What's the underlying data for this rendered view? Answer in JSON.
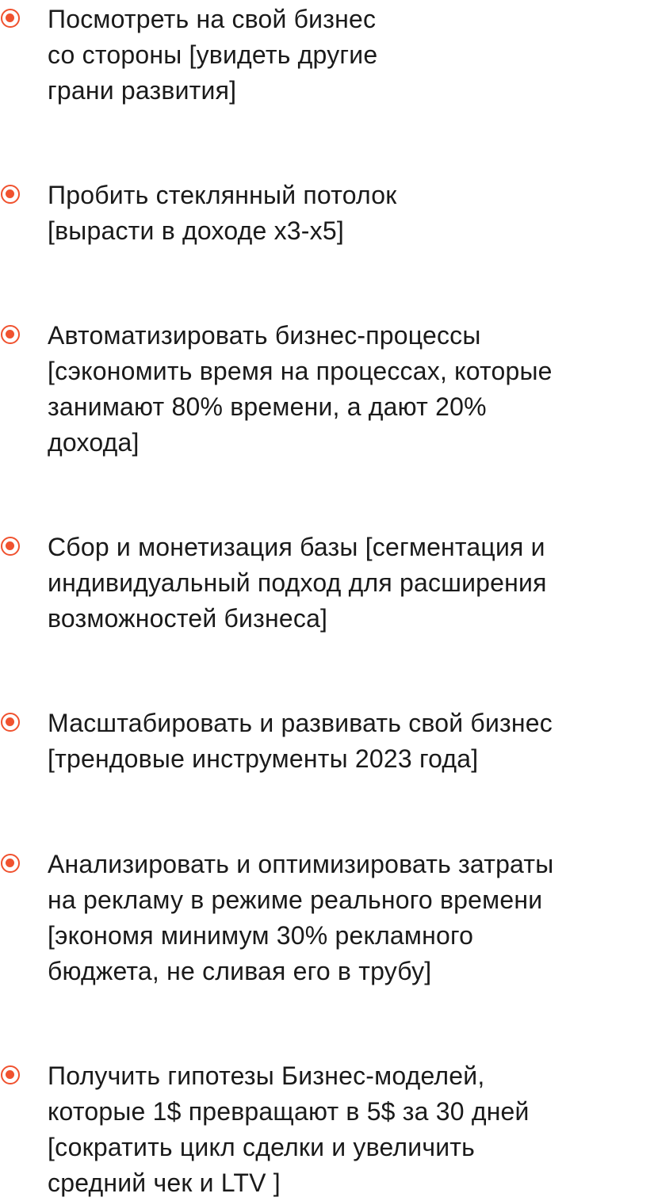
{
  "items": [
    {
      "lines": [
        "Посмотреть на свой бизнес",
        "со стороны [увидеть другие",
        "грани развития]"
      ]
    },
    {
      "lines": [
        "Пробить стеклянный потолок",
        "[вырасти в доходе х3-х5]"
      ]
    },
    {
      "lines": [
        "Автоматизировать бизнес-процессы",
        "[сэкономить время на процессах, которые",
        "занимают 80% времени, а дают 20%",
        "дохода]"
      ]
    },
    {
      "lines": [
        "Сбор и монетизация базы [сегментация и",
        "индивидуальный подход для расширения",
        "возможностей бизнеса]"
      ]
    },
    {
      "lines": [
        "Масштабировать и развивать свой бизнес",
        "[трендовые инструменты 2023 года]"
      ]
    },
    {
      "lines": [
        "Анализировать и оптимизировать затраты",
        "на рекламу в режиме реального времени",
        "[экономя минимум 30% рекламного",
        "бюджета, не сливая его в трубу]"
      ]
    },
    {
      "lines": [
        "Получить гипотезы Бизнес-моделей,",
        "которые 1$ превращают в 5$ за 30 дней",
        "[сократить цикл сделки и увеличить",
        "средний чек и LTV ]"
      ]
    }
  ]
}
